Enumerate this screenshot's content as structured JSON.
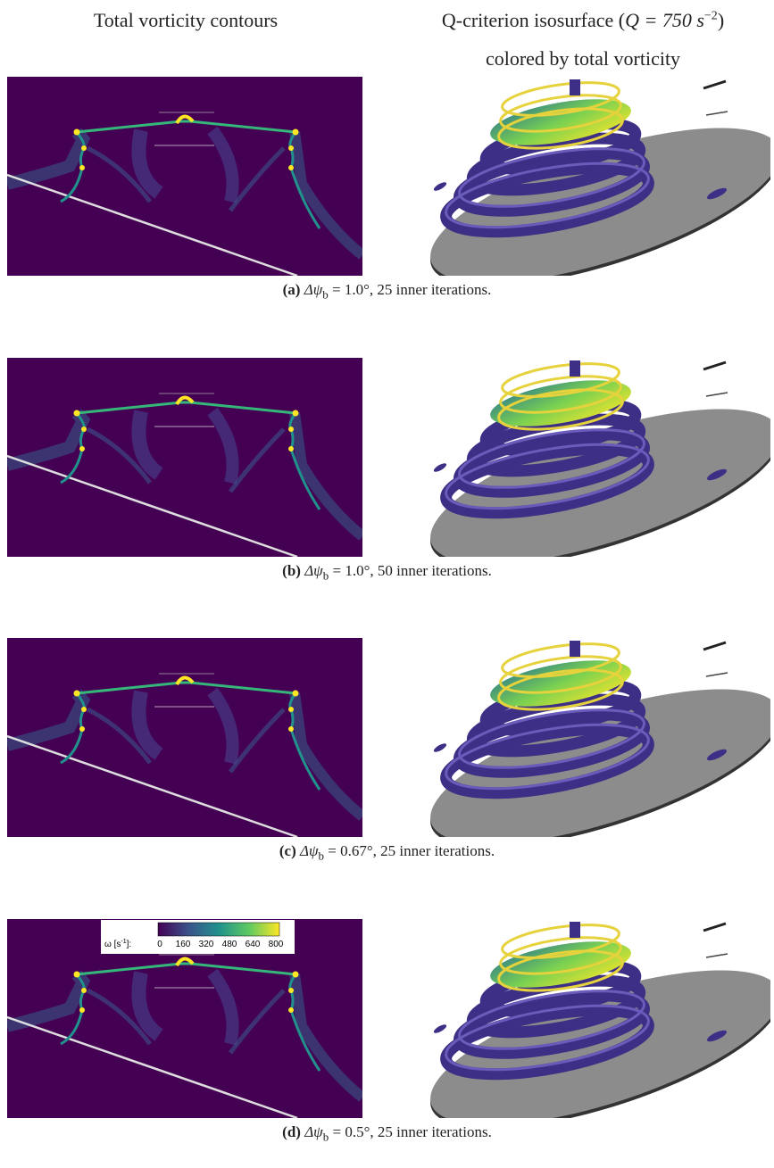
{
  "header": {
    "left_title": "Total vorticity contours",
    "right_title": {
      "prefix": "Q-criterion isosurface (",
      "math": "Q = 750 s",
      "sup": "−2",
      "suffix": ")",
      "line2": "colored by total vorticity"
    }
  },
  "panels": [
    {
      "label": "(a)",
      "symbol": "Δψ",
      "sub": "b",
      "text": " = 1.0°, 25 inner iterations."
    },
    {
      "label": "(b)",
      "symbol": "Δψ",
      "sub": "b",
      "text": " = 1.0°, 50 inner iterations."
    },
    {
      "label": "(c)",
      "symbol": "Δψ",
      "sub": "b",
      "text": " = 0.67°, 25 inner iterations."
    },
    {
      "label": "(d)",
      "symbol": "Δψ",
      "sub": "b",
      "text": " = 0.5°, 25 inner iterations."
    }
  ],
  "colorbar": {
    "label": "ω [s",
    "label_sup": "-1",
    "label_suffix": "]:",
    "ticks": [
      "0",
      "160",
      "320",
      "480",
      "640",
      "800"
    ]
  }
}
